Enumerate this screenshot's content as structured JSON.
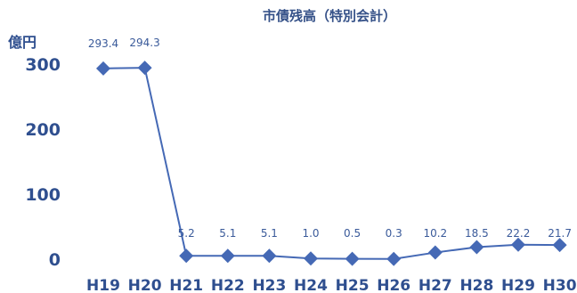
{
  "chart_data": {
    "type": "line",
    "title": "市債残高（特別会計）",
    "ylabel": "億円",
    "xlabel": "",
    "categories": [
      "H19",
      "H20",
      "H21",
      "H22",
      "H23",
      "H24",
      "H25",
      "H26",
      "H27",
      "H28",
      "H29",
      "H30"
    ],
    "series": [
      {
        "values": [
          293.4,
          294.3,
          5.2,
          5.1,
          5.1,
          1.0,
          0.5,
          0.3,
          10.2,
          18.5,
          22.2,
          21.7
        ]
      }
    ],
    "data_labels": [
      "293.4",
      "294.3",
      "5.2",
      "5.1",
      "5.1",
      "1.0",
      "0.5",
      "0.3",
      "10.2",
      "18.5",
      "22.2",
      "21.7"
    ],
    "y_ticks": [
      0,
      100,
      200,
      300
    ],
    "ylim": [
      0,
      300
    ],
    "grid": false,
    "legend": "none",
    "marker": "diamond",
    "colors": {
      "line": "#4569B5",
      "marker": "#4569B5",
      "ticks": "#2f4f8f",
      "labels": "#3a5a9a"
    }
  }
}
